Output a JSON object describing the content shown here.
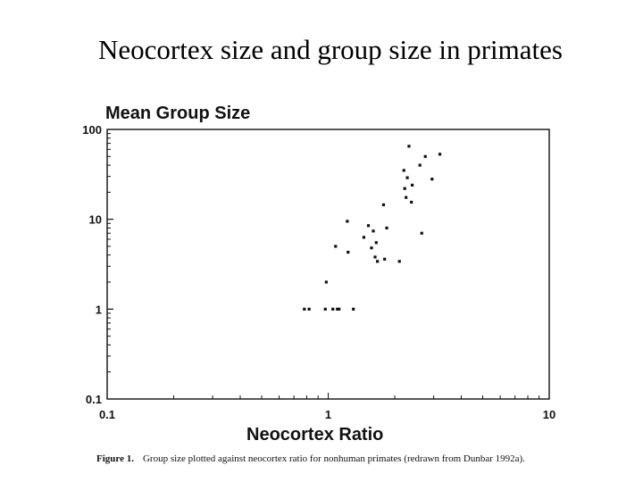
{
  "slide": {
    "title": "Neocortex size and group size in primates"
  },
  "figure": {
    "caption_label": "Figure 1.",
    "caption_text": "Group size plotted against neocortex ratio for nonhuman primates (redrawn from Dunbar 1992a)."
  },
  "chart_data": {
    "type": "scatter",
    "title": "",
    "xlabel": "Neocortex Ratio",
    "ylabel": "Mean Group Size",
    "xscale": "log",
    "yscale": "log",
    "xlim": [
      0.1,
      10
    ],
    "ylim": [
      0.1,
      100
    ],
    "x_ticks": [
      "0.1",
      "1",
      "10"
    ],
    "y_ticks": [
      "100",
      "10",
      "1",
      "0.1"
    ],
    "grid": false,
    "legend": "none",
    "points": [
      {
        "x": 0.78,
        "y": 1.0
      },
      {
        "x": 0.82,
        "y": 1.0
      },
      {
        "x": 0.97,
        "y": 1.0
      },
      {
        "x": 1.05,
        "y": 1.0
      },
      {
        "x": 1.1,
        "y": 1.0
      },
      {
        "x": 1.12,
        "y": 1.0
      },
      {
        "x": 1.3,
        "y": 1.0
      },
      {
        "x": 0.98,
        "y": 2.0
      },
      {
        "x": 1.08,
        "y": 5.0
      },
      {
        "x": 1.22,
        "y": 9.5
      },
      {
        "x": 1.23,
        "y": 4.3
      },
      {
        "x": 1.45,
        "y": 6.3
      },
      {
        "x": 1.52,
        "y": 8.5
      },
      {
        "x": 1.57,
        "y": 4.8
      },
      {
        "x": 1.6,
        "y": 7.4
      },
      {
        "x": 1.63,
        "y": 3.8
      },
      {
        "x": 1.65,
        "y": 5.5
      },
      {
        "x": 1.67,
        "y": 3.4
      },
      {
        "x": 1.78,
        "y": 14.5
      },
      {
        "x": 1.8,
        "y": 3.6
      },
      {
        "x": 1.84,
        "y": 8.0
      },
      {
        "x": 2.1,
        "y": 3.4
      },
      {
        "x": 2.2,
        "y": 35.0
      },
      {
        "x": 2.22,
        "y": 22.0
      },
      {
        "x": 2.25,
        "y": 17.5
      },
      {
        "x": 2.28,
        "y": 29.0
      },
      {
        "x": 2.32,
        "y": 65.0
      },
      {
        "x": 2.38,
        "y": 15.5
      },
      {
        "x": 2.4,
        "y": 24.0
      },
      {
        "x": 2.6,
        "y": 40.0
      },
      {
        "x": 2.65,
        "y": 7.0
      },
      {
        "x": 2.75,
        "y": 50.0
      },
      {
        "x": 2.95,
        "y": 28.0
      },
      {
        "x": 3.2,
        "y": 53.0
      }
    ]
  }
}
